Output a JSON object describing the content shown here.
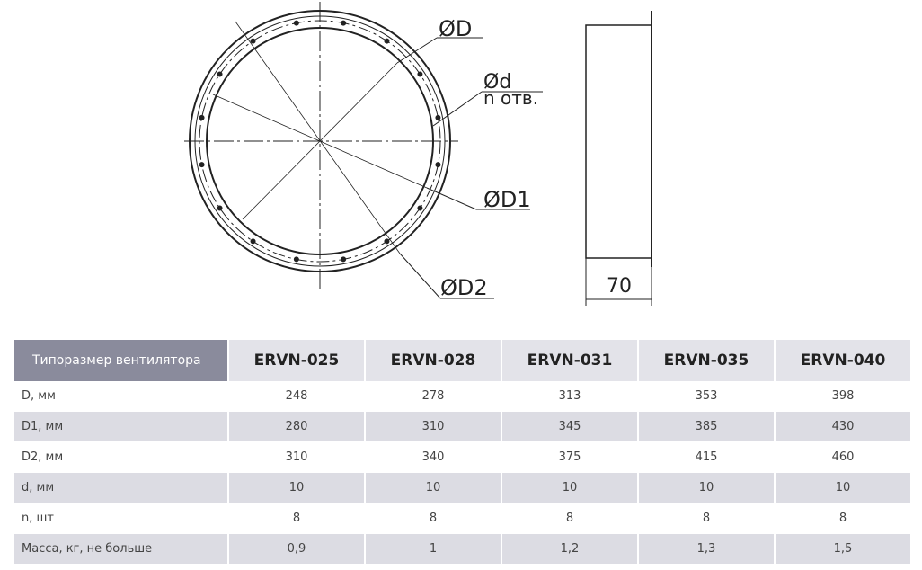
{
  "drawing": {
    "labels": {
      "D": "ØD",
      "d": "Ød",
      "n": "n отв.",
      "D1": "ØD1",
      "D2": "ØD2",
      "length": "70"
    }
  },
  "table": {
    "header": [
      "Типоразмер вентилятора",
      "ERVN-025",
      "ERVN-028",
      "ERVN-031",
      "ERVN-035",
      "ERVN-040"
    ],
    "rows": [
      [
        "D, мм",
        "248",
        "278",
        "313",
        "353",
        "398"
      ],
      [
        "D1, мм",
        "280",
        "310",
        "345",
        "385",
        "430"
      ],
      [
        "D2, мм",
        "310",
        "340",
        "375",
        "415",
        "460"
      ],
      [
        "d, мм",
        "10",
        "10",
        "10",
        "10",
        "10"
      ],
      [
        "n, шт",
        "8",
        "8",
        "8",
        "8",
        "8"
      ],
      [
        "Масса, кг, не больше",
        "0,9",
        "1",
        "1,2",
        "1,3",
        "1,5"
      ]
    ]
  }
}
